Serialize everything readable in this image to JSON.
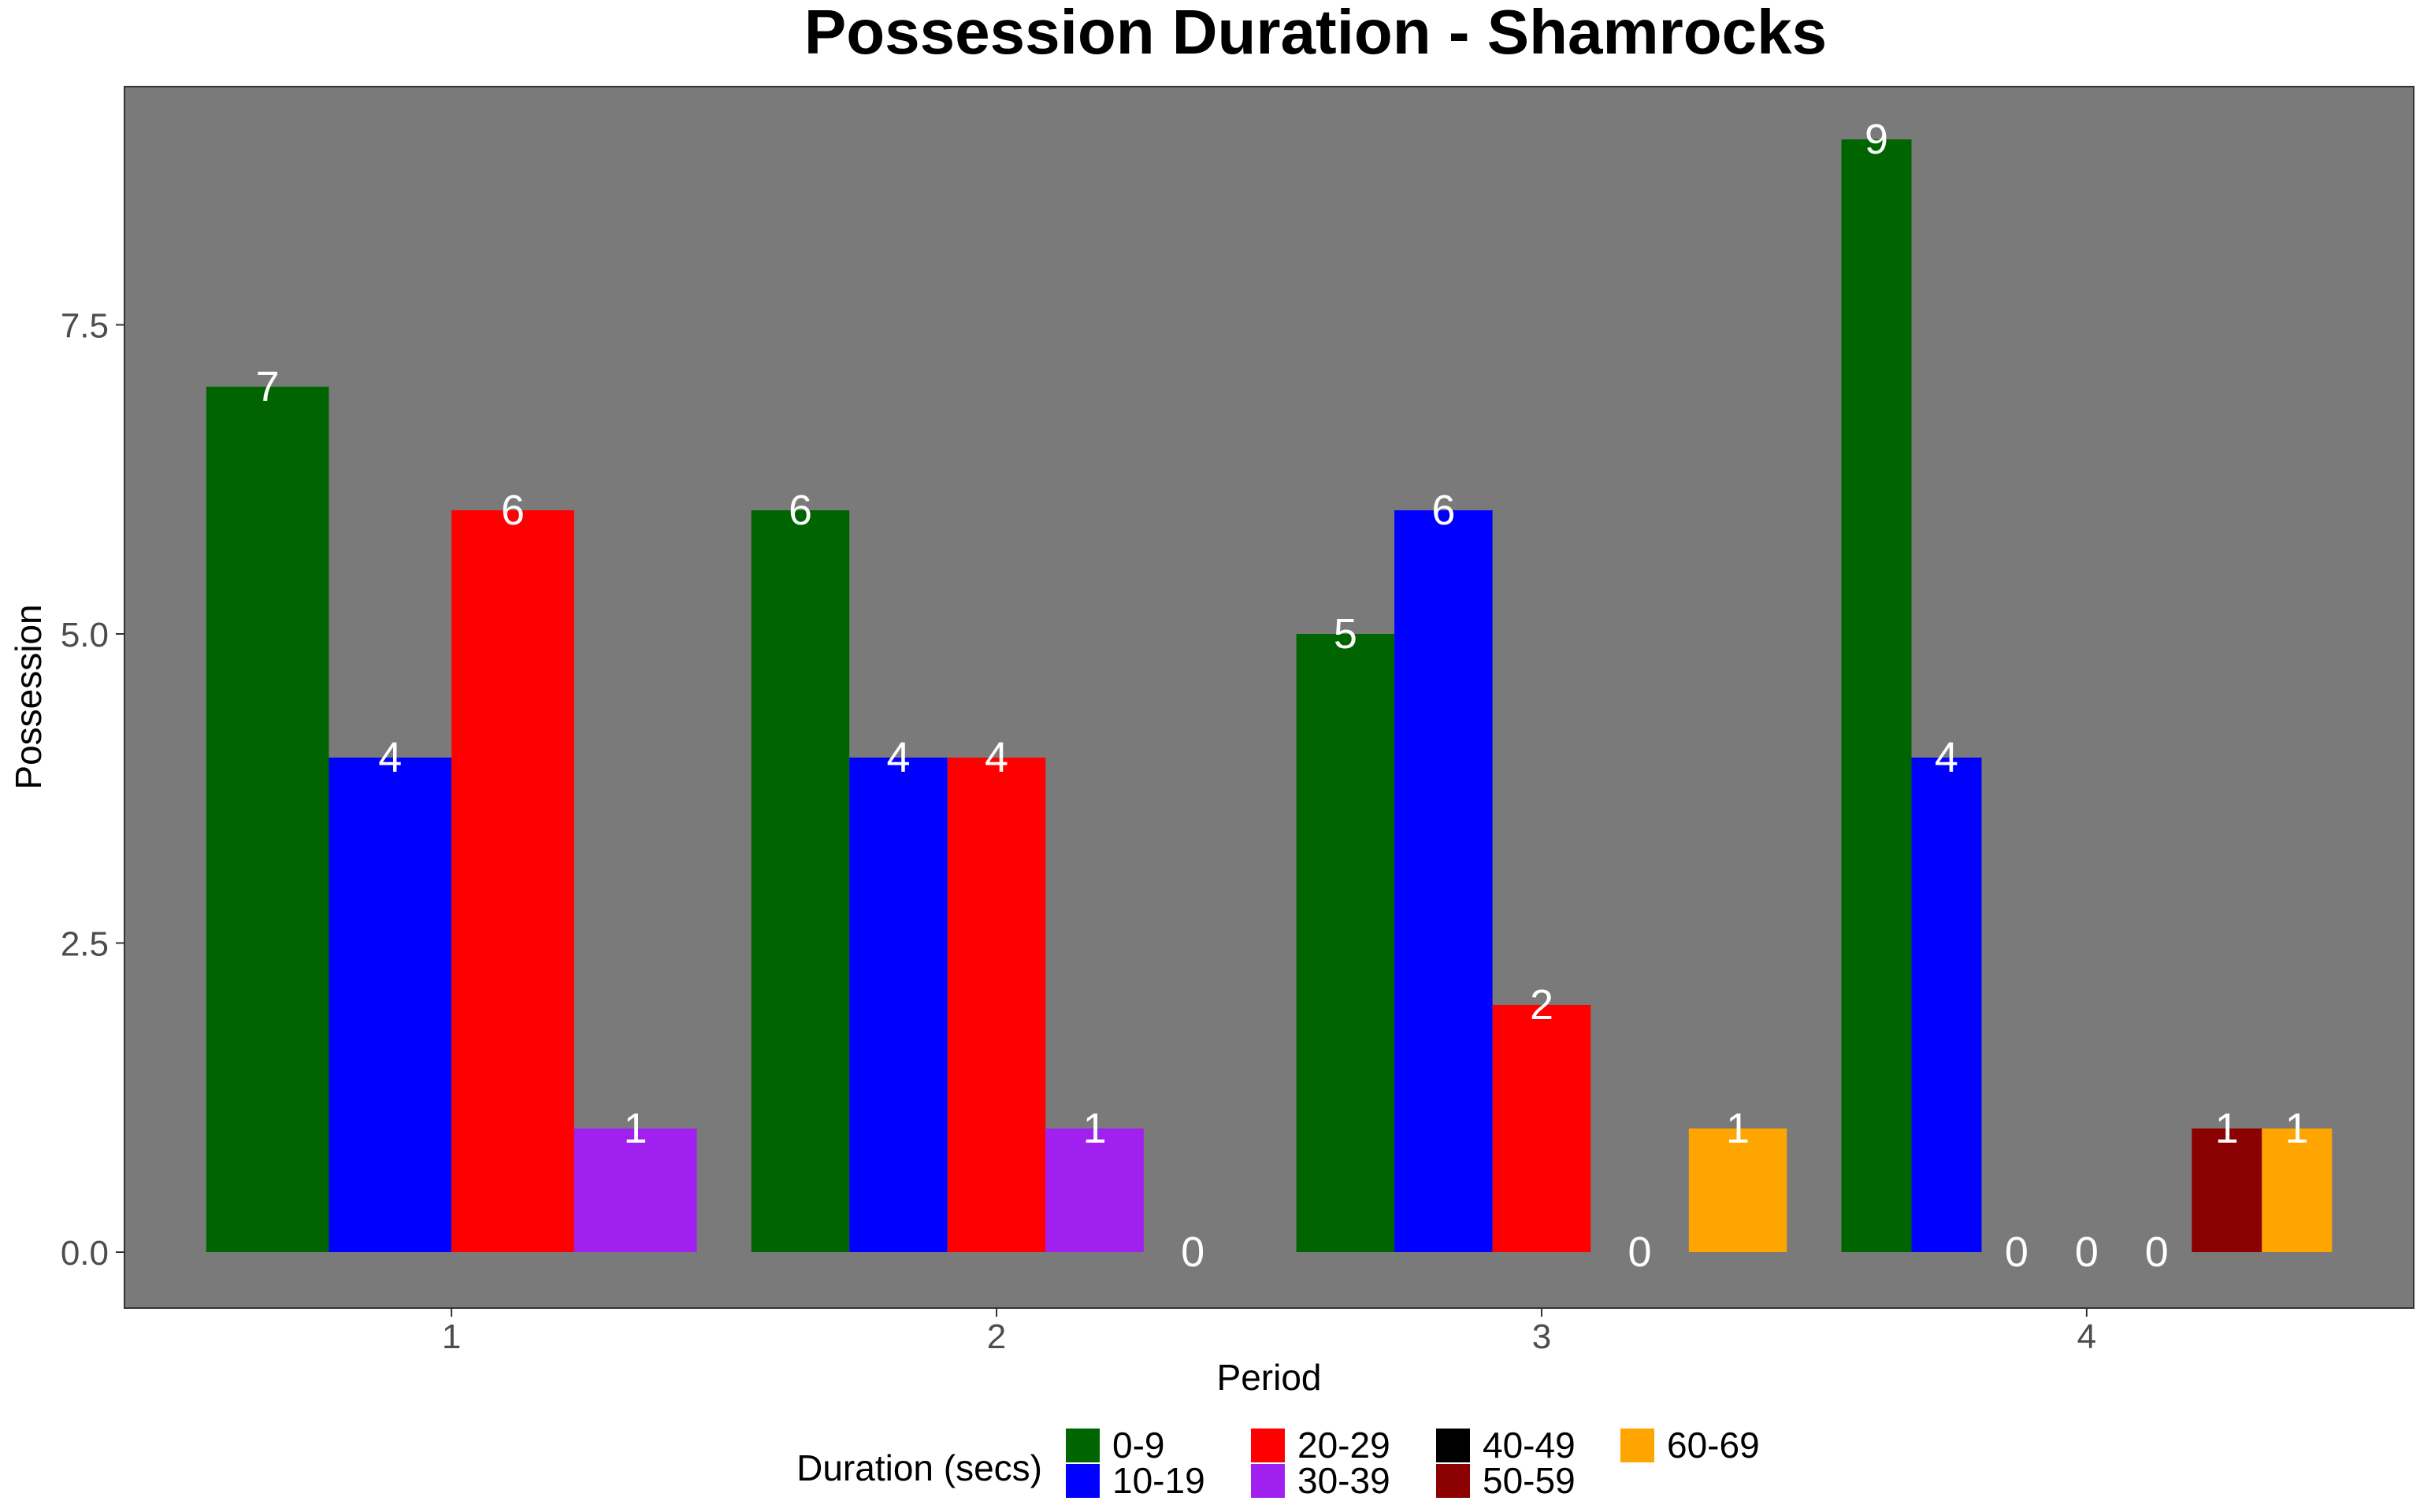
{
  "chart_data": {
    "type": "bar",
    "title": "Possession Duration - Shamrocks",
    "xlabel": "Period",
    "ylabel": "Possession",
    "categories": [
      "1",
      "2",
      "3",
      "4"
    ],
    "y_ticks": [
      "0.0",
      "2.5",
      "5.0",
      "7.5"
    ],
    "ylim": [
      -0.45,
      9.85
    ],
    "grid": false,
    "panel_background": "#7a7a7a",
    "legend": {
      "title": "Duration (secs)",
      "placement": "bottom",
      "items": [
        {
          "name": "0-9",
          "color": "#006400"
        },
        {
          "name": "10-19",
          "color": "#0000ff"
        },
        {
          "name": "20-29",
          "color": "#ff0000"
        },
        {
          "name": "30-39",
          "color": "#a020f0"
        },
        {
          "name": "40-49",
          "color": "#000000"
        },
        {
          "name": "50-59",
          "color": "#8b0000"
        },
        {
          "name": "60-69",
          "color": "#ffa500"
        }
      ]
    },
    "groups": [
      {
        "period": "1",
        "bars": [
          {
            "duration": "0-9",
            "value": 7
          },
          {
            "duration": "10-19",
            "value": 4
          },
          {
            "duration": "20-29",
            "value": 6
          },
          {
            "duration": "30-39",
            "value": 1
          }
        ]
      },
      {
        "period": "2",
        "bars": [
          {
            "duration": "0-9",
            "value": 6
          },
          {
            "duration": "10-19",
            "value": 4
          },
          {
            "duration": "20-29",
            "value": 4
          },
          {
            "duration": "30-39",
            "value": 1
          },
          {
            "duration": "40-49",
            "value": 0
          }
        ]
      },
      {
        "period": "3",
        "bars": [
          {
            "duration": "0-9",
            "value": 5
          },
          {
            "duration": "10-19",
            "value": 6
          },
          {
            "duration": "20-29",
            "value": 2
          },
          {
            "duration": "50-59",
            "value": 0
          },
          {
            "duration": "60-69",
            "value": 1
          }
        ]
      },
      {
        "period": "4",
        "bars": [
          {
            "duration": "0-9",
            "value": 9
          },
          {
            "duration": "10-19",
            "value": 4
          },
          {
            "duration": "20-29",
            "value": 0
          },
          {
            "duration": "30-39",
            "value": 0
          },
          {
            "duration": "40-49",
            "value": 0
          },
          {
            "duration": "50-59",
            "value": 1
          },
          {
            "duration": "60-69",
            "value": 1
          }
        ]
      }
    ]
  }
}
